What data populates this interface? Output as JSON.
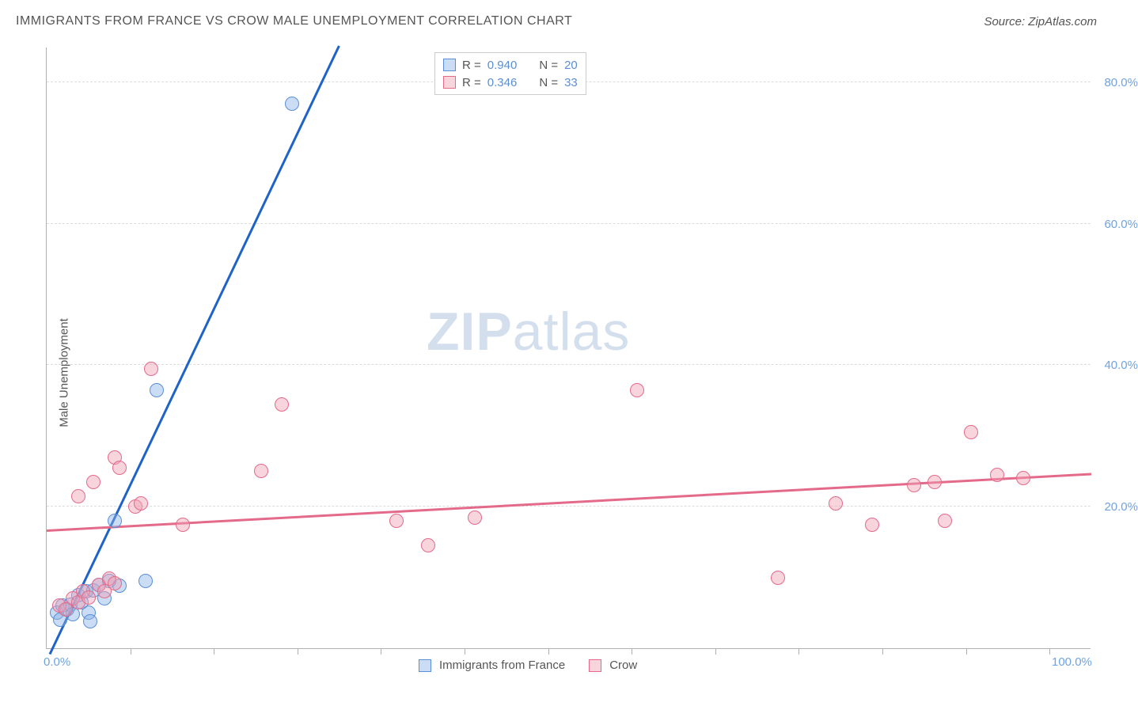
{
  "title": "IMMIGRANTS FROM FRANCE VS CROW MALE UNEMPLOYMENT CORRELATION CHART",
  "source": "Source: ZipAtlas.com",
  "ylabel": "Male Unemployment",
  "watermark_zip": "ZIP",
  "watermark_atlas": "atlas",
  "chart": {
    "type": "scatter",
    "xlim": [
      0,
      100
    ],
    "ylim": [
      0,
      85
    ],
    "x_ticks": [
      0,
      100
    ],
    "x_tick_labels": [
      "0.0%",
      "100.0%"
    ],
    "x_minor_ticks": [
      8,
      16,
      24,
      32,
      40,
      48,
      56,
      64,
      72,
      80,
      88,
      96
    ],
    "y_gridlines": [
      20,
      40,
      60,
      80
    ],
    "y_tick_labels": [
      "20.0%",
      "40.0%",
      "60.0%",
      "80.0%"
    ],
    "background_color": "#ffffff",
    "grid_color": "#dcdcdc",
    "axis_color": "#b0b0b0",
    "tick_label_color": "#6fa3e0",
    "marker_radius": 9,
    "marker_stroke_width": 1.5,
    "label_fontsize": 15,
    "title_fontsize": 16
  },
  "series": [
    {
      "name": "Immigrants from France",
      "fill_color": "rgba(138,180,230,0.45)",
      "stroke_color": "#5a8fd6",
      "trend_color": "#1f63c7",
      "trend_width": 3,
      "r": "0.940",
      "n": "20",
      "trend": {
        "x1": 0.3,
        "y1": -1,
        "x2": 28,
        "y2": 85
      },
      "points": [
        [
          1.0,
          5.0
        ],
        [
          1.3,
          4.0
        ],
        [
          1.5,
          6.0
        ],
        [
          2.0,
          5.5
        ],
        [
          2.3,
          6.2
        ],
        [
          2.5,
          4.8
        ],
        [
          3.0,
          7.5
        ],
        [
          3.3,
          6.5
        ],
        [
          3.8,
          8.0
        ],
        [
          4.0,
          5.0
        ],
        [
          4.5,
          8.2
        ],
        [
          5.0,
          9.0
        ],
        [
          5.5,
          7.0
        ],
        [
          6.0,
          9.5
        ],
        [
          7.0,
          8.8
        ],
        [
          9.5,
          9.5
        ],
        [
          6.5,
          18.0
        ],
        [
          10.5,
          36.5
        ],
        [
          23.5,
          77.0
        ],
        [
          4.2,
          3.8
        ]
      ]
    },
    {
      "name": "Crow",
      "fill_color": "rgba(240,160,180,0.45)",
      "stroke_color": "#e46a8a",
      "trend_color": "#e46a8a",
      "trend_width": 2.5,
      "r": "0.346",
      "n": "33",
      "trend": {
        "x1": 0,
        "y1": 16.5,
        "x2": 100,
        "y2": 24.5
      },
      "points": [
        [
          1.2,
          6.0
        ],
        [
          1.8,
          5.5
        ],
        [
          2.5,
          7.0
        ],
        [
          3.0,
          6.5
        ],
        [
          3.5,
          8.0
        ],
        [
          4.0,
          7.2
        ],
        [
          5.0,
          9.0
        ],
        [
          5.5,
          8.0
        ],
        [
          6.0,
          9.8
        ],
        [
          6.5,
          9.2
        ],
        [
          3.0,
          21.5
        ],
        [
          4.5,
          23.5
        ],
        [
          6.5,
          27.0
        ],
        [
          7.0,
          25.5
        ],
        [
          8.5,
          20.0
        ],
        [
          9.0,
          20.5
        ],
        [
          10.0,
          39.5
        ],
        [
          13.0,
          17.5
        ],
        [
          20.5,
          25.0
        ],
        [
          22.5,
          34.5
        ],
        [
          33.5,
          18.0
        ],
        [
          36.5,
          14.5
        ],
        [
          41.0,
          18.5
        ],
        [
          56.5,
          36.5
        ],
        [
          70.0,
          10.0
        ],
        [
          75.5,
          20.5
        ],
        [
          79.0,
          17.5
        ],
        [
          83.0,
          23.0
        ],
        [
          85.0,
          23.5
        ],
        [
          86.0,
          18.0
        ],
        [
          88.5,
          30.5
        ],
        [
          91.0,
          24.5
        ],
        [
          93.5,
          24.0
        ]
      ]
    }
  ],
  "legend_top": {
    "r_label": "R =",
    "n_label": "N ="
  },
  "legend_bottom": [
    {
      "label": "Immigrants from France",
      "fill": "rgba(138,180,230,0.45)",
      "stroke": "#5a8fd6"
    },
    {
      "label": "Crow",
      "fill": "rgba(240,160,180,0.45)",
      "stroke": "#e46a8a"
    }
  ]
}
